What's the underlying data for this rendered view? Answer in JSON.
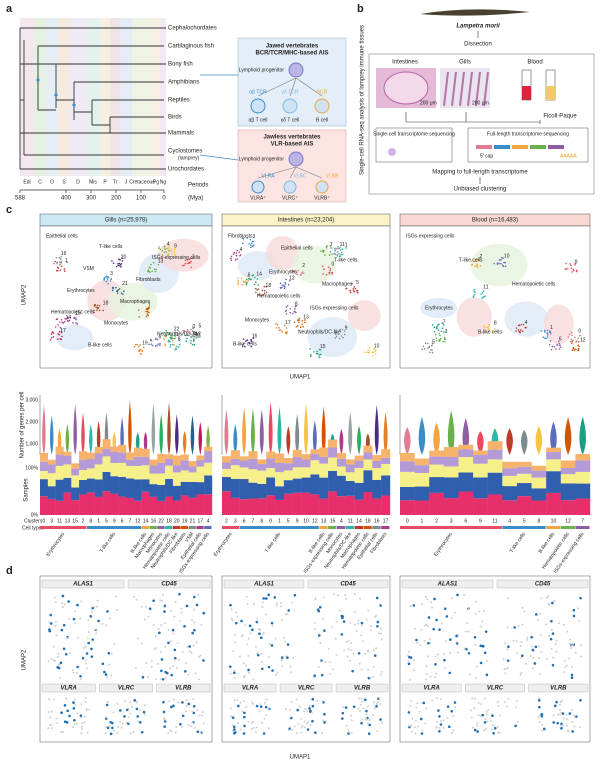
{
  "panel_a": {
    "label": "a",
    "taxa": [
      "Cephalochordates",
      "Cartilaginous fish",
      "Bony fish",
      "Amphibians",
      "Reptiles",
      "Birds",
      "Mammals",
      "Cyclostomes",
      "Urochordates"
    ],
    "taxon_note": "(lamprey)",
    "periods": [
      "Edi",
      "C",
      "O",
      "S",
      "D",
      "Mis",
      "P",
      "Tr",
      "J",
      "Cretaceous",
      "Pg",
      "Ng"
    ],
    "time_ticks": [
      588,
      400,
      300,
      200,
      100,
      0
    ],
    "time_title": "Periods",
    "time_unit": "(Mya)",
    "jawed": {
      "title": "Jawed vertebrates",
      "subtitle": "BCR/TCR/MHC-based AIS",
      "progenitor": "Lymphoid progenitor",
      "cells": [
        "αβ TCR",
        "γδ TCR",
        "BCR"
      ],
      "cell_labels": [
        "αβ T cell",
        "γδ T cell",
        "B cell"
      ]
    },
    "jawless": {
      "title": "Jawless vertebrates",
      "subtitle": "VLR-based AIS",
      "progenitor": "Lymphoid progenitor",
      "genes": [
        "VLRA",
        "VLRC",
        "VLRB"
      ],
      "cell_labels": [
        "VLRA⁺",
        "VLRC⁺",
        "VLRB⁺"
      ]
    }
  },
  "panel_b": {
    "label": "b",
    "side_title": "Single-cell RNA-seq analysis of lamprey immune tissues",
    "species": "Lampetra morii",
    "step1": "Dissection",
    "tissues": [
      "Intestines",
      "Gills",
      "Blood"
    ],
    "scale_bar": "200 μm",
    "ficoll": "Ficoll-Paque",
    "sc_seq": "Single-cell transcriptome sequencing",
    "fl_seq": "Full-length transcriptome sequencing",
    "cap": "5' cap",
    "polya": "AAAAA",
    "mapping": "Mapping to full-length transcriptome",
    "clustering": "Unbiased clustering"
  },
  "panel_c": {
    "label": "c",
    "umap_y": "UMAP2",
    "umap_x": "UMAP1",
    "violin_y": "Number of genes per cell",
    "violin_ticks": [
      "3,000",
      "2,000",
      "1,000"
    ],
    "bar_y": "Samples",
    "bar_ticks": [
      "100%",
      "0%"
    ],
    "clusters_label": "Clusters",
    "celltypes_label": "Cell types",
    "tissues": [
      {
        "title": "Gills (n=25,978)",
        "clusters": [
          "0",
          "3",
          "11",
          "13",
          "15",
          "2",
          "8",
          "1",
          "5",
          "9",
          "6",
          "7",
          "12",
          "14",
          "16",
          "22",
          "18",
          "20",
          "19",
          "21",
          "17",
          "4"
        ],
        "umap_labels": [
          "Epithelial cells",
          "T-like cells",
          "ISGs-expressing cells",
          "VSM",
          "Fibroblasts",
          "Erythrocytes",
          "Macrophages",
          "Hematopoietic cells",
          "Monocytes",
          "Neutrophils/DC-like",
          "B-like cells"
        ],
        "cell_types": [
          "Erythrocytes",
          "T-like cells",
          "B-like cells",
          "Macrophages",
          "Monocytes",
          "Hematopoietic cells",
          "Neutrophils/DC-like",
          "Fibroblasts",
          "VSM",
          "Epithelial cells",
          "ISGs-expressing cells"
        ]
      },
      {
        "title": "Intestines (n=23,204)",
        "clusters": [
          "2",
          "3",
          "6",
          "7",
          "8",
          "0",
          "1",
          "5",
          "9",
          "10",
          "12",
          "13",
          "15",
          "4",
          "11",
          "14",
          "18",
          "16",
          "17"
        ],
        "umap_labels": [
          "Fibroblasts",
          "Epithelial cells",
          "T-like cells",
          "Erythrocytes",
          "Macrophages",
          "Hematopoietic cells",
          "ISGs-expressing cells",
          "Monocytes",
          "Neutrophils/DC-like",
          "B-like cells"
        ],
        "cell_types": [
          "Erythrocytes",
          "T-like cells",
          "B-like cells",
          "ISGs-expressing cells",
          "Monocytes",
          "Neutrophils/DC-like",
          "Macrophages",
          "Hematopoietic cells",
          "Epithelial cells",
          "Fibroblasts"
        ]
      },
      {
        "title": "Blood (n=16,483)",
        "clusters": [
          "0",
          "1",
          "2",
          "3",
          "6",
          "9",
          "11",
          "4",
          "5",
          "8",
          "10",
          "12",
          "7"
        ],
        "umap_labels": [
          "ISGs-expressing cells",
          "T-like cells",
          "Hematopoietic cells",
          "Erythrocytes",
          "B-like cells"
        ],
        "cell_types": [
          "Erythrocytes",
          "T-like cells",
          "B-like cells",
          "Hematopoietic cells",
          "ISGs-expressing cells"
        ]
      }
    ]
  },
  "panel_d": {
    "label": "d",
    "umap_y": "UMAP2",
    "umap_x": "UMAP1",
    "genes_top": [
      "ALAS1",
      "CD45"
    ],
    "genes_bottom": [
      "VLRA",
      "VLRC",
      "VLRB"
    ]
  }
}
